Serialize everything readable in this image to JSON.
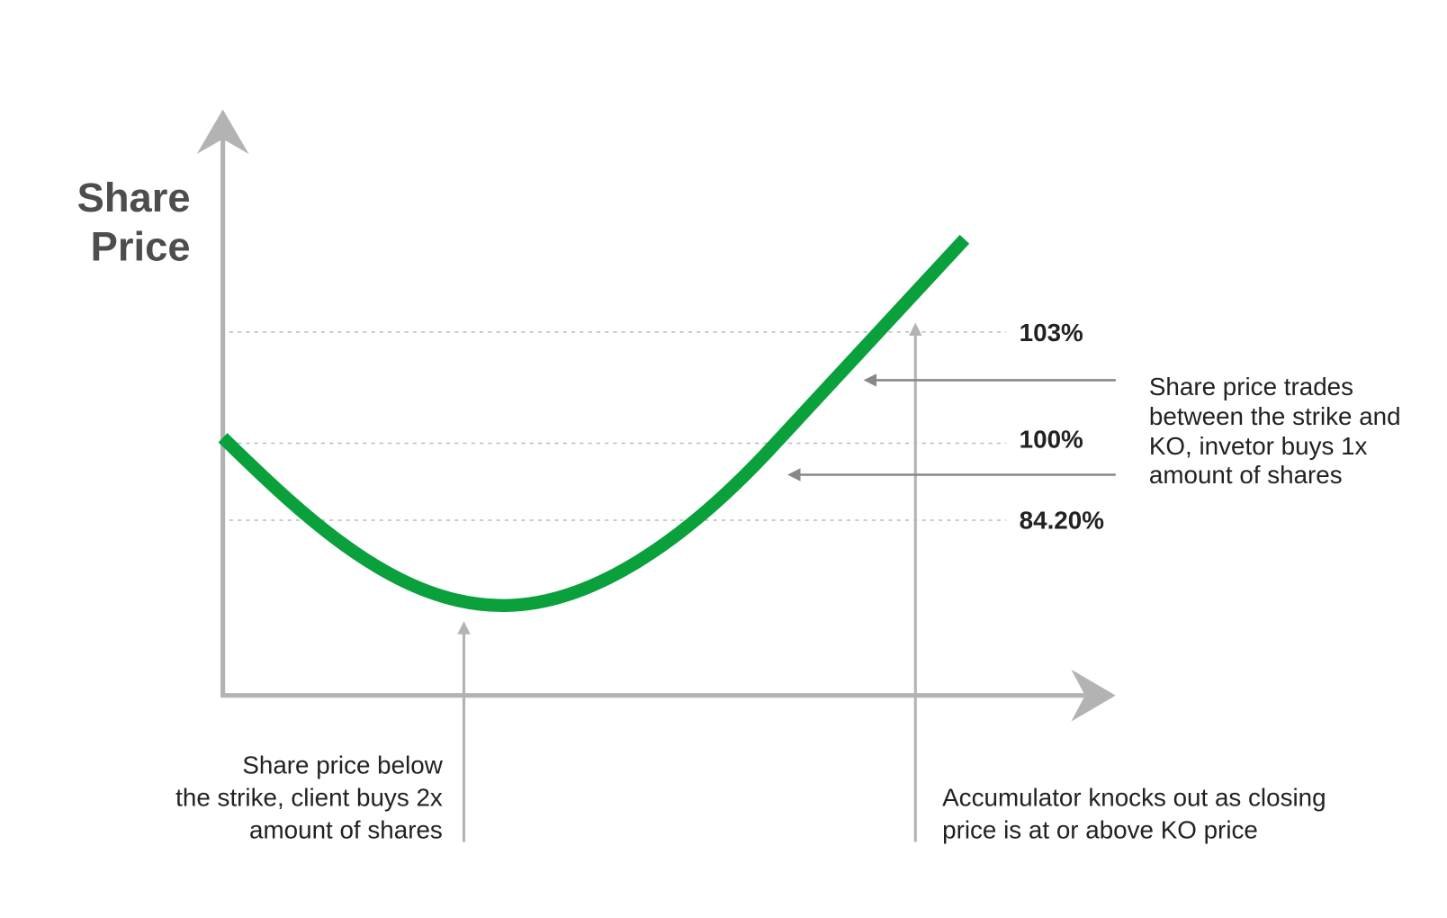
{
  "axis_label": [
    "Share",
    "Price"
  ],
  "levels": [
    "103%",
    "100%",
    "84.20%"
  ],
  "annotations": {
    "between": [
      "Share price trades",
      "between the strike and",
      "KO, invetor buys 1x",
      "amount of shares"
    ],
    "below": [
      "Share price below",
      "the strike, client buys 2x",
      "amount of shares"
    ],
    "knockout": [
      "Accumulator knocks out as closing",
      "price is at or above KO price"
    ]
  }
}
